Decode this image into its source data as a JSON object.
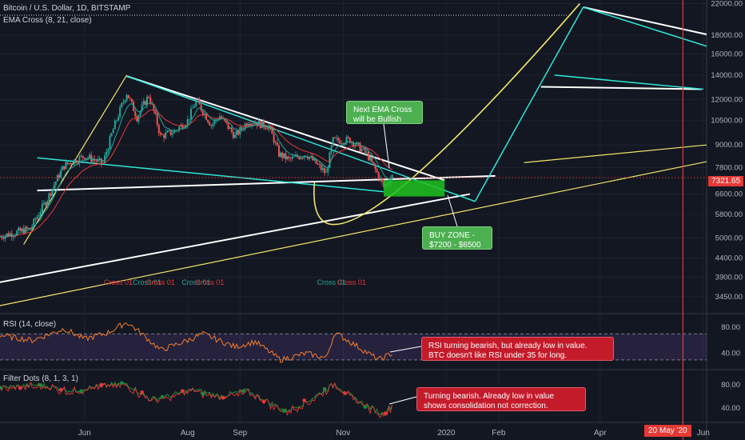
{
  "header": {
    "title": "Bitcoin / U.S. Dollar, 1D, BITSTAMP",
    "indicator": "EMA Cross (8, 21, close)"
  },
  "panes": {
    "rsi_label": "RSI (14, close)",
    "filter_label": "Filter Dots (8, 1, 3, 1)"
  },
  "price_tag": "7321.65",
  "date_tag": "20 May '20",
  "annotations": {
    "ema_cross": [
      "Next EMA Cross",
      "will be Bullish"
    ],
    "buy_zone": [
      "BUY ZONE -",
      "$7200 - $6500"
    ],
    "rsi_note": [
      "RSI turning bearish, but already low in value.",
      "BTC doesn't like RSI under 35 for long."
    ],
    "filter_note": [
      "Turning bearish.  Already low in value",
      "shows consolidation not correction."
    ]
  },
  "cross_labels": [
    {
      "text": "Cross 01",
      "color": "#e53935",
      "x": "2019-06-21"
    },
    {
      "text": "Cross 01",
      "color": "#26a69a",
      "x": "2019-07-08"
    },
    {
      "text": "Cross 01",
      "color": "#e53935",
      "x": "2019-07-16"
    },
    {
      "text": "Cross 01",
      "color": "#26a69a",
      "x": "2019-08-06"
    },
    {
      "text": "Cross 01",
      "color": "#e53935",
      "x": "2019-08-14"
    },
    {
      "text": "Cross 01",
      "color": "#26a69a",
      "x": "2019-10-25"
    },
    {
      "text": "Cross 01",
      "color": "#e53935",
      "x": "2019-11-06"
    }
  ],
  "colors": {
    "up": "#26a69a",
    "down": "#ef5350",
    "trend_white": "#ffffff",
    "trend_cyan": "#2ee6d6",
    "curve_yellow": "#f2e56a",
    "buy_zone": "#1fc21f",
    "vline": "#e53935",
    "rsi": "#f57c2a",
    "filter_green": "#1b8a3a",
    "filter_red": "#e53935"
  },
  "chart_data": [
    {
      "type": "candlestick",
      "title": "Bitcoin / U.S. Dollar, 1D, BITSTAMP",
      "x_axis": {
        "type": "date",
        "range": [
          "2019-04-12",
          "2020-06-03"
        ],
        "ticks": [
          "Jun",
          "Aug",
          "Sep",
          "Nov",
          "2020",
          "Feb",
          "Apr",
          "Jun"
        ]
      },
      "y_axis": {
        "scale": "log",
        "range": [
          3100,
          22500
        ],
        "ticks": [
          22000,
          18000,
          16000,
          14000,
          12000,
          10500,
          9000,
          7800,
          6600,
          5800,
          5000,
          4400,
          3900,
          3450
        ]
      },
      "current_price": 7321.65,
      "price_anchors": {
        "x": [
          "2019-04-12",
          "2019-04-30",
          "2019-05-10",
          "2019-05-20",
          "2019-06-01",
          "2019-06-12",
          "2019-06-26",
          "2019-07-02",
          "2019-07-09",
          "2019-07-16",
          "2019-07-24",
          "2019-08-01",
          "2019-08-06",
          "2019-08-15",
          "2019-08-20",
          "2019-08-29",
          "2019-09-06",
          "2019-09-18",
          "2019-09-24",
          "2019-09-30",
          "2019-10-10",
          "2019-10-22",
          "2019-10-26",
          "2019-11-05",
          "2019-11-15",
          "2019-11-25",
          "2019-11-30"
        ],
        "close": [
          5050,
          5300,
          6400,
          7900,
          8400,
          8000,
          12500,
          10700,
          12300,
          9500,
          9800,
          10500,
          11900,
          10200,
          10800,
          9500,
          10500,
          10100,
          8500,
          8200,
          8500,
          7500,
          9250,
          9300,
          8500,
          6900,
          7400
        ]
      },
      "ema_cross": {
        "fast": 8,
        "slow": 21
      },
      "buy_zone": {
        "from": "2019-11-25",
        "to": "2019-12-31",
        "range": [
          6500,
          7200
        ]
      },
      "trendlines": [
        {
          "color": "white",
          "from": [
            "2019-06-26",
            13900
          ],
          "to": [
            "2019-12-31",
            7200
          ]
        },
        {
          "color": "white",
          "from": [
            "2019-04-12",
            3780
          ],
          "to": [
            "2020-01-15",
            6600
          ]
        },
        {
          "color": "white",
          "from": [
            "2019-05-04",
            6750
          ],
          "to": [
            "2020-01-30",
            7400
          ]
        },
        {
          "color": "white",
          "from": [
            "2020-02-26",
            13000
          ],
          "to": [
            "2020-05-31",
            12800
          ]
        },
        {
          "color": "white",
          "from": [
            "2020-03-22",
            21500
          ],
          "to": [
            "2020-06-03",
            18100
          ]
        },
        {
          "color": "cyan",
          "from": [
            "2019-06-26",
            13900
          ],
          "to": [
            "2020-01-18",
            6300
          ]
        },
        {
          "color": "cyan",
          "from": [
            "2019-05-04",
            8300
          ],
          "to": [
            "2019-11-25",
            6700
          ]
        },
        {
          "color": "cyan",
          "from": [
            "2020-01-18",
            6300
          ],
          "to": [
            "2020-03-22",
            21500
          ]
        },
        {
          "color": "cyan",
          "from": [
            "2020-03-22",
            21500
          ],
          "to": [
            "2020-06-03",
            16800
          ]
        },
        {
          "color": "cyan",
          "from": [
            "2020-03-05",
            14000
          ],
          "to": [
            "2020-06-01",
            12800
          ]
        },
        {
          "color": "yellow",
          "from": [
            "2019-04-12",
            3260
          ],
          "to": [
            "2020-06-03",
            8100
          ]
        },
        {
          "color": "yellow",
          "from": [
            "2020-02-16",
            8050
          ],
          "to": [
            "2020-06-03",
            9000
          ]
        },
        {
          "color": "yellow",
          "from": [
            "2019-04-26",
            4800
          ],
          "to": [
            "2019-06-26",
            14000
          ]
        }
      ],
      "projection_curve": {
        "color": "yellow",
        "from": [
          "2019-10-15",
          7100
        ],
        "through": [
          "2019-11-20",
          6400
        ],
        "to": [
          "2020-03-20",
          22000
        ]
      },
      "vertical_marker": "2020-05-20"
    },
    {
      "type": "line",
      "name": "RSI (14, close)",
      "y_axis": {
        "range": [
          15,
          100
        ],
        "ticks": [
          80,
          40
        ],
        "bands": [
          70,
          30
        ]
      },
      "x": [
        "2019-04-12",
        "2019-05-01",
        "2019-05-20",
        "2019-06-01",
        "2019-06-15",
        "2019-06-26",
        "2019-07-05",
        "2019-07-16",
        "2019-08-01",
        "2019-08-10",
        "2019-08-29",
        "2019-09-10",
        "2019-09-25",
        "2019-10-10",
        "2019-10-22",
        "2019-10-27",
        "2019-11-05",
        "2019-11-22",
        "2019-11-30"
      ],
      "values": [
        68,
        60,
        78,
        62,
        72,
        88,
        70,
        45,
        60,
        70,
        50,
        58,
        30,
        40,
        33,
        72,
        58,
        30,
        40
      ]
    },
    {
      "type": "line",
      "name": "Filter Dots (8, 1, 3, 1)",
      "y_axis": {
        "range": [
          15,
          105
        ],
        "ticks": [
          80,
          40
        ]
      },
      "x": [
        "2019-04-12",
        "2019-05-05",
        "2019-05-25",
        "2019-06-10",
        "2019-06-26",
        "2019-07-10",
        "2019-07-20",
        "2019-08-05",
        "2019-08-20",
        "2019-09-05",
        "2019-09-28",
        "2019-10-10",
        "2019-10-27",
        "2019-11-08",
        "2019-11-24",
        "2019-11-30"
      ],
      "values": [
        75,
        80,
        70,
        78,
        82,
        55,
        60,
        72,
        60,
        70,
        35,
        50,
        82,
        55,
        30,
        45
      ]
    }
  ]
}
